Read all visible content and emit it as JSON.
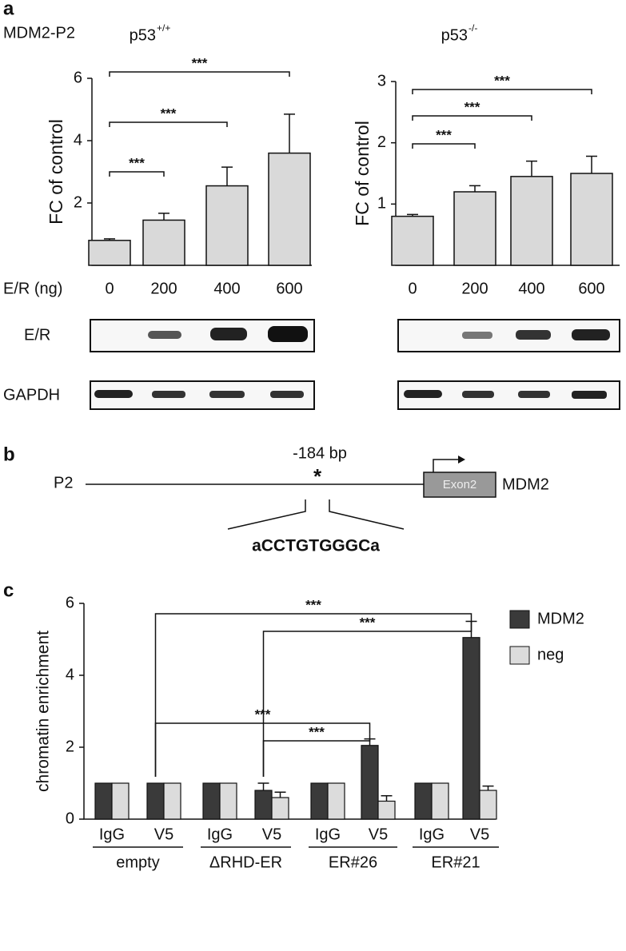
{
  "figure": {
    "panel_labels": [
      "a",
      "b",
      "c"
    ],
    "subtitle": "MDM2-P2",
    "blot_rows": [
      "E/R",
      "GAPDH"
    ],
    "promoter": {
      "name": "P2",
      "position": "-184 bp",
      "marker": "*",
      "exon": "Exon2",
      "gene": "MDM2",
      "sequence": "aCCTGTGGGCa"
    }
  },
  "chart_data": [
    {
      "type": "bar",
      "title": "p53",
      "title_superscript": "+/+",
      "xlabel": "E/R (ng)",
      "ylabel": "FC of control",
      "categories": [
        "0",
        "200",
        "400",
        "600"
      ],
      "values": [
        0.8,
        1.45,
        2.55,
        3.6
      ],
      "errors": [
        0.05,
        0.22,
        0.6,
        1.25
      ],
      "color": "#d9d9d9",
      "ylim": [
        0,
        6
      ],
      "yticks": [
        2,
        4,
        6
      ],
      "brackets": [
        {
          "from": 0,
          "to": 1,
          "label": "***"
        },
        {
          "from": 0,
          "to": 2,
          "label": "***"
        },
        {
          "from": 0,
          "to": 3,
          "label": "***"
        }
      ]
    },
    {
      "type": "bar",
      "title": "p53",
      "title_superscript": "-/-",
      "ylabel": "FC of control",
      "categories": [
        "0",
        "200",
        "400",
        "600"
      ],
      "values": [
        0.8,
        1.2,
        1.45,
        1.5
      ],
      "errors": [
        0.03,
        0.1,
        0.25,
        0.28
      ],
      "color": "#d9d9d9",
      "ylim": [
        0,
        3
      ],
      "yticks": [
        1,
        2,
        3
      ],
      "brackets": [
        {
          "from": 0,
          "to": 1,
          "label": "***"
        },
        {
          "from": 0,
          "to": 2,
          "label": "***"
        },
        {
          "from": 0,
          "to": 3,
          "label": "***"
        }
      ]
    },
    {
      "type": "grouped_bar",
      "ylabel": "chromatin enrichment",
      "categories": [
        "IgG",
        "V5",
        "IgG",
        "V5",
        "IgG",
        "V5",
        "IgG",
        "V5"
      ],
      "groups": [
        "empty",
        "ΔRHD-ER",
        "ER#26",
        "ER#21"
      ],
      "series": [
        {
          "name": "MDM2",
          "color": "#3a3a3a",
          "values": [
            1,
            1,
            1,
            0.8,
            1,
            2.05,
            1,
            5.05
          ],
          "errors": [
            0,
            0,
            0,
            0.2,
            0,
            0.18,
            0,
            0.45
          ]
        },
        {
          "name": "neg",
          "color": "#dcdcdc",
          "values": [
            1,
            1,
            1,
            0.6,
            1,
            0.5,
            1,
            0.8
          ],
          "errors": [
            0,
            0,
            0,
            0.15,
            0,
            0.15,
            0,
            0.12
          ]
        }
      ],
      "ylim": [
        0,
        6
      ],
      "yticks": [
        0,
        2,
        4,
        6
      ],
      "legend": "top-right",
      "brackets": [
        {
          "from": 1,
          "to": 7,
          "label": "***"
        },
        {
          "from": 3,
          "to": 7,
          "label": "***"
        },
        {
          "from": 1,
          "to": 5,
          "label": "***"
        },
        {
          "from": 3,
          "to": 5,
          "label": "***"
        }
      ]
    }
  ]
}
